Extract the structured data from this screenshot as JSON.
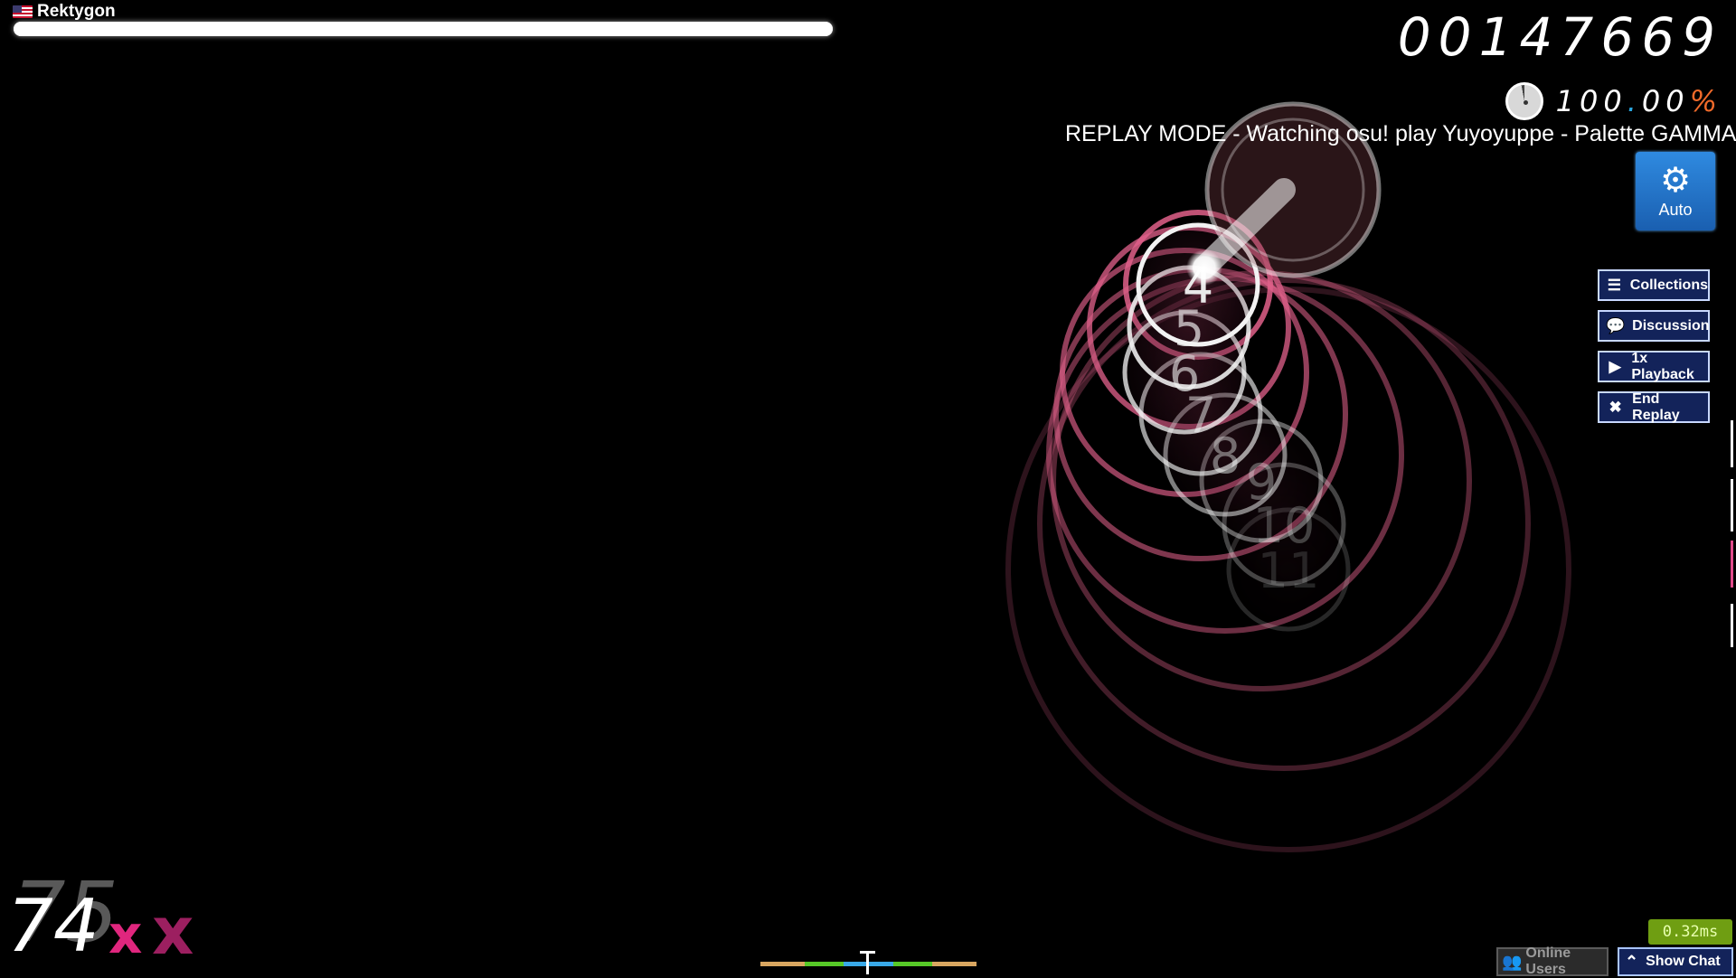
{
  "player": {
    "name": "Rektygon",
    "flag": "us-flag-icon",
    "health": 1.0
  },
  "score": {
    "value": "00147669"
  },
  "accuracy": {
    "int": "100",
    "dot": ".",
    "dec": "00",
    "pct": "%",
    "pie_icon": "accuracy-pie-icon"
  },
  "replay_banner": "REPLAY MODE - Watching osu! play Yuyoyuppe - Palette GAMMA -",
  "auto_badge": {
    "label": "Auto",
    "icon": "gear-icon"
  },
  "side_buttons": [
    {
      "label": "Collections",
      "icon": "list-icon"
    },
    {
      "label": "Discussion",
      "icon": "chat-bubble-icon"
    },
    {
      "label": "1x Playback",
      "icon": "play-icon"
    },
    {
      "label": "End Replay",
      "icon": "close-icon"
    }
  ],
  "hit_circles": [
    "4",
    "5",
    "6",
    "7",
    "8",
    "9",
    "10",
    "11"
  ],
  "combo": {
    "value": "74",
    "ghost": "75",
    "suffix": "x"
  },
  "latency": "0.32ms",
  "bottom_buttons": {
    "online_users": {
      "label": "Online Users",
      "icon": "users-icon"
    },
    "show_chat": {
      "label": "Show Chat",
      "icon": "chevron-up-icon"
    }
  },
  "colors": {
    "approach_circle": "#e0608a",
    "accent_blue": "#2a86dc",
    "accuracy_pct": "#f06a2a",
    "combo_x": "#e0267e"
  }
}
